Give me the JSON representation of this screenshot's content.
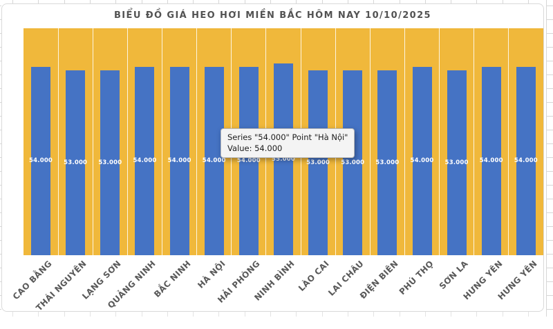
{
  "chart_data": {
    "type": "bar",
    "title": "BIỂU ĐỒ GIÁ HEO HƠI MIỀN BẮC HÔM NAY 10/10/2025",
    "categories": [
      "CAO BẰNG",
      "THÁI NGUYÊN",
      "LẠNG SƠN",
      "QUẢNG NINH",
      "BẮC NINH",
      "HÀ NỘI",
      "HẢI PHÒNG",
      "NINH BÌNH",
      "LÀO CAI",
      "LAI CHÂU",
      "ĐIỆN BIÊN",
      "PHÚ THỌ",
      "SƠN LA",
      "HƯNG YÊN",
      "HƯNG YÊN"
    ],
    "series": [
      {
        "name": "54.000",
        "values": [
          54000,
          53000,
          53000,
          54000,
          54000,
          54000,
          54000,
          55000,
          53000,
          53000,
          53000,
          54000,
          53000,
          54000,
          54000
        ]
      }
    ],
    "value_labels": [
      "54.000",
      "53.000",
      "53.000",
      "54.000",
      "54.000",
      "54.000",
      "54.000",
      "55.000",
      "53.000",
      "53.000",
      "53.000",
      "54.000",
      "53.000",
      "54.000",
      "54.000"
    ],
    "xlabel": "",
    "ylabel": "",
    "ylim": [
      0,
      65000
    ],
    "legend": "none",
    "grid": "vertical white category separators",
    "data_label_position": "center",
    "colors": {
      "bar": "#4573C4",
      "plot_background": "#F0B83B",
      "title_text": "#525252",
      "axis_text": "#595959",
      "value_label_text": "#FFFFFF"
    }
  },
  "tooltip": {
    "line1": "Series \"54.000\" Point \"Hà Nội\"",
    "line2": "Value: 54.000"
  }
}
